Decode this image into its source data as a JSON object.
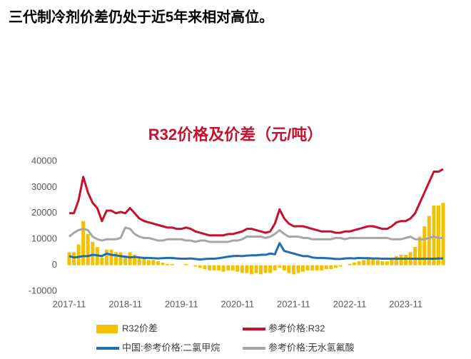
{
  "heading": "三代制冷剂价差仍处于近5年来相对高位。",
  "chart_data": {
    "type": "combo",
    "title": "R32价格及价差（元/吨）",
    "categories": [
      "2017-11",
      null,
      null,
      null,
      null,
      null,
      null,
      null,
      null,
      null,
      null,
      null,
      "2018-11",
      null,
      null,
      null,
      null,
      null,
      null,
      null,
      null,
      null,
      null,
      null,
      "2019-11",
      null,
      null,
      null,
      null,
      null,
      null,
      null,
      null,
      null,
      null,
      null,
      "2020-11",
      null,
      null,
      null,
      null,
      null,
      null,
      null,
      null,
      null,
      null,
      null,
      "2021-11",
      null,
      null,
      null,
      null,
      null,
      null,
      null,
      null,
      null,
      null,
      null,
      "2022-11",
      null,
      null,
      null,
      null,
      null,
      null,
      null,
      null,
      null,
      null,
      null,
      "2023-11",
      null,
      null,
      null,
      null,
      null,
      null,
      null,
      null
    ],
    "ylim": [
      -10000,
      40000
    ],
    "yticks": [
      -10000,
      0,
      10000,
      20000,
      30000,
      40000
    ],
    "grid": false,
    "legend": "bottom",
    "series": [
      {
        "name": "R32价差",
        "type": "bar",
        "color": "#f2c200",
        "values": [
          5000,
          5000,
          8000,
          17000,
          12000,
          9000,
          7000,
          3000,
          6000,
          6000,
          5000,
          5000,
          3000,
          5000,
          4000,
          3000,
          2500,
          2000,
          2000,
          1500,
          1000,
          500,
          500,
          0,
          0,
          500,
          0,
          -500,
          -1000,
          -1500,
          -2000,
          -2000,
          -2000,
          -2500,
          -2000,
          -2000,
          -2500,
          -3000,
          -3000,
          -3500,
          -3000,
          -3500,
          -3000,
          -3000,
          -2000,
          -1000,
          -2000,
          -3000,
          -3500,
          -3000,
          -2500,
          -2000,
          -2000,
          -2000,
          -2000,
          -1500,
          -1500,
          -1000,
          -500,
          0,
          500,
          1000,
          1500,
          2000,
          2500,
          2500,
          2000,
          1500,
          1500,
          2500,
          3500,
          4000,
          4000,
          5000,
          7000,
          11000,
          15000,
          19000,
          23000,
          23000,
          24000
        ]
      },
      {
        "name": "参考价格:R32",
        "type": "line",
        "color": "#c8102e",
        "values": [
          20000,
          20000,
          25000,
          34000,
          28000,
          24000,
          22000,
          17000,
          21000,
          21000,
          20000,
          20500,
          20000,
          22000,
          20000,
          18000,
          17000,
          16500,
          16000,
          15500,
          15000,
          14500,
          14500,
          14000,
          14000,
          14500,
          14000,
          13000,
          12500,
          12000,
          11500,
          11500,
          11500,
          11500,
          12000,
          12000,
          12500,
          13000,
          14000,
          14000,
          13500,
          13000,
          12500,
          13000,
          16000,
          21500,
          18000,
          16000,
          15000,
          15000,
          15000,
          14500,
          14000,
          13500,
          13000,
          13000,
          13000,
          12500,
          12500,
          13000,
          13000,
          13500,
          14000,
          14500,
          15000,
          15000,
          14500,
          14000,
          14000,
          15000,
          16500,
          17000,
          17000,
          18000,
          20000,
          24000,
          28000,
          32000,
          36000,
          36000,
          37000
        ]
      },
      {
        "name": "中国:参考价格:二氯甲烷",
        "type": "line",
        "color": "#1f6db3",
        "values": [
          3500,
          3000,
          3200,
          3500,
          3500,
          4000,
          3800,
          3500,
          4500,
          4000,
          3800,
          3500,
          3300,
          3000,
          3200,
          3000,
          2800,
          2800,
          2700,
          2600,
          2700,
          2800,
          2800,
          2600,
          2500,
          2500,
          2600,
          2400,
          2200,
          2400,
          2500,
          2500,
          2700,
          3000,
          3300,
          3500,
          3600,
          3500,
          3700,
          3800,
          3800,
          4000,
          4000,
          4500,
          4200,
          8500,
          5500,
          5000,
          4500,
          4000,
          3500,
          3500,
          3000,
          2800,
          2800,
          2700,
          2600,
          2400,
          2400,
          2600,
          2700,
          2600,
          2800,
          2700,
          2700,
          2600,
          2600,
          2500,
          2500,
          2500,
          2500,
          2500,
          2500,
          2500,
          2500,
          2500,
          2500,
          2500,
          2500,
          2600,
          2600
        ]
      },
      {
        "name": "参考价格:无水氢氟酸",
        "type": "line",
        "color": "#a6a6a6",
        "values": [
          11000,
          12500,
          13500,
          14000,
          13500,
          11000,
          10000,
          9500,
          10000,
          10000,
          10000,
          10500,
          14500,
          14000,
          12000,
          11000,
          10500,
          10500,
          10000,
          9500,
          9500,
          10000,
          10000,
          10000,
          10000,
          9500,
          9500,
          9000,
          9500,
          9500,
          9000,
          9000,
          9000,
          9000,
          9000,
          9500,
          9500,
          10000,
          11000,
          11000,
          11000,
          11000,
          10500,
          11000,
          12000,
          13500,
          12000,
          11000,
          11000,
          11000,
          10500,
          10500,
          10000,
          10000,
          10000,
          10000,
          10000,
          10500,
          10500,
          10000,
          10500,
          10500,
          10500,
          10500,
          10500,
          10500,
          10500,
          10500,
          10500,
          10000,
          10000,
          10000,
          10500,
          11000,
          10000,
          10000,
          10000,
          10500,
          11000,
          10500,
          10500
        ]
      }
    ]
  }
}
